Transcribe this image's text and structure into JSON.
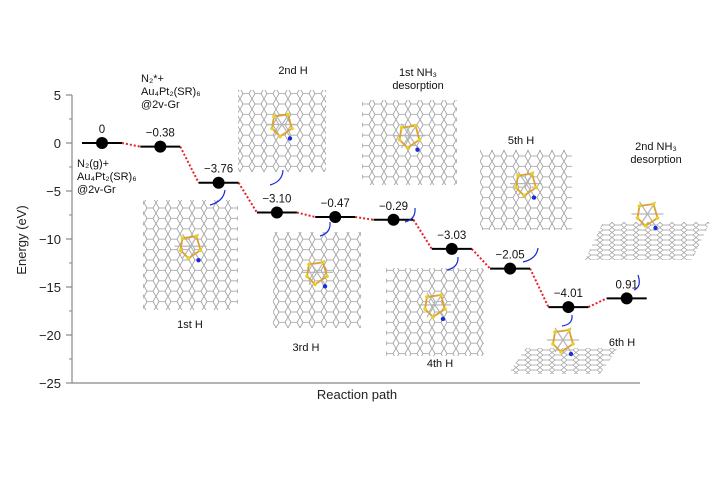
{
  "chart_data": {
    "type": "line",
    "subtype": "energy-level-diagram",
    "xlabel": "Reaction path",
    "ylabel": "Energy (eV)",
    "ylim": [
      -25,
      5
    ],
    "yticks": [
      5,
      0,
      -5,
      -10,
      -15,
      -20,
      -25
    ],
    "ytick_labels": [
      "5",
      "0",
      "−5",
      "−10",
      "−15",
      "−20",
      "−25"
    ],
    "grid": false,
    "levels": [
      0,
      -0.38,
      -4.14,
      -7.24,
      -7.71,
      -8.0,
      -11.03,
      -13.08,
      -17.09,
      -16.18
    ],
    "value_labels": [
      "0",
      "−0.38",
      "−3.76",
      "−3.10",
      "−0.47",
      "−0.29",
      "−3.03",
      "−2.05",
      "−4.01",
      "0.91"
    ],
    "level_color": "#000000",
    "connector_color": "#e8202a",
    "arrow_color": "#1a2bd8",
    "annotations": {
      "start_line1": "N₂(g)+",
      "start_line2": "Au₄Pt₂(SR)₆",
      "start_line3": "@2v-Gr",
      "ads_line1": "N₂*+",
      "ads_line2": "Au₄Pt₂(SR)₆",
      "ads_line3": "@2v-Gr",
      "h1": "1st H",
      "h2": "2nd H",
      "h3": "3rd H",
      "nh3_1_line1": "1st NH₃",
      "nh3_1_line2": "desorption",
      "h4": "4th H",
      "h5": "5th H",
      "h6": "6th H",
      "nh3_2_line1": "2nd NH₃",
      "nh3_2_line2": "desorption"
    }
  }
}
